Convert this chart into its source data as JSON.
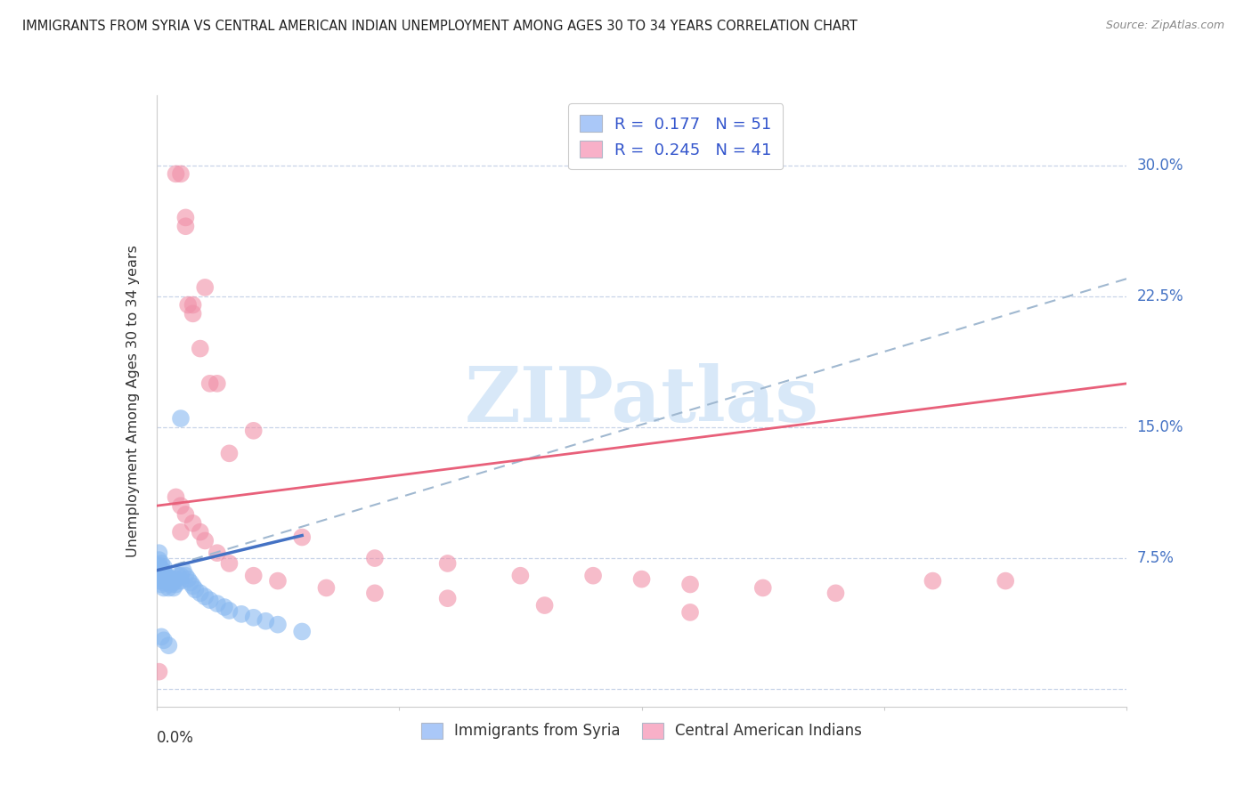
{
  "title": "IMMIGRANTS FROM SYRIA VS CENTRAL AMERICAN INDIAN UNEMPLOYMENT AMONG AGES 30 TO 34 YEARS CORRELATION CHART",
  "source": "Source: ZipAtlas.com",
  "ylabel": "Unemployment Among Ages 30 to 34 years",
  "ytick_labels": [
    "",
    "7.5%",
    "15.0%",
    "22.5%",
    "30.0%"
  ],
  "ytick_values": [
    0.0,
    0.075,
    0.15,
    0.225,
    0.3
  ],
  "xlim": [
    0.0,
    0.4
  ],
  "ylim": [
    -0.01,
    0.34
  ],
  "legend_r1": "R =  0.177",
  "legend_n1": "N = 51",
  "legend_r2": "R =  0.245",
  "legend_n2": "N = 41",
  "legend_color1": "#aac8f8",
  "legend_color2": "#f8b0c8",
  "legend_label1": "Immigrants from Syria",
  "legend_label2": "Central American Indians",
  "color_syria": "#88b8f0",
  "color_central": "#f090a8",
  "color_trend_syria": "#4472c4",
  "color_trend_central": "#e8607a",
  "color_trend_dashed": "#a0b8d0",
  "watermark": "ZIPatlas",
  "syria_x": [
    0.001,
    0.001,
    0.001,
    0.001,
    0.001,
    0.001,
    0.002,
    0.002,
    0.002,
    0.002,
    0.002,
    0.003,
    0.003,
    0.003,
    0.003,
    0.003,
    0.004,
    0.004,
    0.005,
    0.005,
    0.005,
    0.006,
    0.006,
    0.007,
    0.007,
    0.008,
    0.008,
    0.009,
    0.01,
    0.01,
    0.01,
    0.011,
    0.012,
    0.013,
    0.014,
    0.015,
    0.016,
    0.018,
    0.02,
    0.022,
    0.025,
    0.028,
    0.03,
    0.035,
    0.04,
    0.045,
    0.05,
    0.06,
    0.002,
    0.003,
    0.005
  ],
  "syria_y": [
    0.062,
    0.065,
    0.068,
    0.071,
    0.074,
    0.078,
    0.06,
    0.063,
    0.066,
    0.069,
    0.072,
    0.058,
    0.061,
    0.064,
    0.067,
    0.07,
    0.062,
    0.065,
    0.058,
    0.061,
    0.064,
    0.06,
    0.063,
    0.058,
    0.061,
    0.06,
    0.063,
    0.065,
    0.062,
    0.065,
    0.155,
    0.068,
    0.065,
    0.063,
    0.061,
    0.059,
    0.057,
    0.055,
    0.053,
    0.051,
    0.049,
    0.047,
    0.045,
    0.043,
    0.041,
    0.039,
    0.037,
    0.033,
    0.03,
    0.028,
    0.025
  ],
  "central_x": [
    0.008,
    0.01,
    0.01,
    0.012,
    0.012,
    0.013,
    0.015,
    0.015,
    0.018,
    0.02,
    0.022,
    0.025,
    0.03,
    0.04,
    0.06,
    0.09,
    0.12,
    0.15,
    0.18,
    0.2,
    0.22,
    0.25,
    0.28,
    0.32,
    0.35,
    0.008,
    0.01,
    0.012,
    0.015,
    0.018,
    0.02,
    0.025,
    0.03,
    0.04,
    0.05,
    0.07,
    0.09,
    0.12,
    0.16,
    0.22,
    0.001
  ],
  "central_y": [
    0.295,
    0.09,
    0.295,
    0.27,
    0.265,
    0.22,
    0.22,
    0.215,
    0.195,
    0.23,
    0.175,
    0.175,
    0.135,
    0.148,
    0.087,
    0.075,
    0.072,
    0.065,
    0.065,
    0.063,
    0.06,
    0.058,
    0.055,
    0.062,
    0.062,
    0.11,
    0.105,
    0.1,
    0.095,
    0.09,
    0.085,
    0.078,
    0.072,
    0.065,
    0.062,
    0.058,
    0.055,
    0.052,
    0.048,
    0.044,
    0.01
  ],
  "syria_trend_x": [
    0.0,
    0.06
  ],
  "syria_trend_y": [
    0.068,
    0.088
  ],
  "central_trend_x": [
    0.0,
    0.4
  ],
  "central_trend_y": [
    0.105,
    0.175
  ],
  "dashed_trend_x": [
    0.0,
    0.4
  ],
  "dashed_trend_y": [
    0.068,
    0.235
  ],
  "background_color": "#ffffff",
  "grid_color": "#c8d4e8",
  "axis_color": "#cccccc",
  "title_color": "#222222",
  "watermark_color": "#d8e8f8",
  "tick_label_color_right": "#4472c4",
  "rn_color": "#3355cc"
}
